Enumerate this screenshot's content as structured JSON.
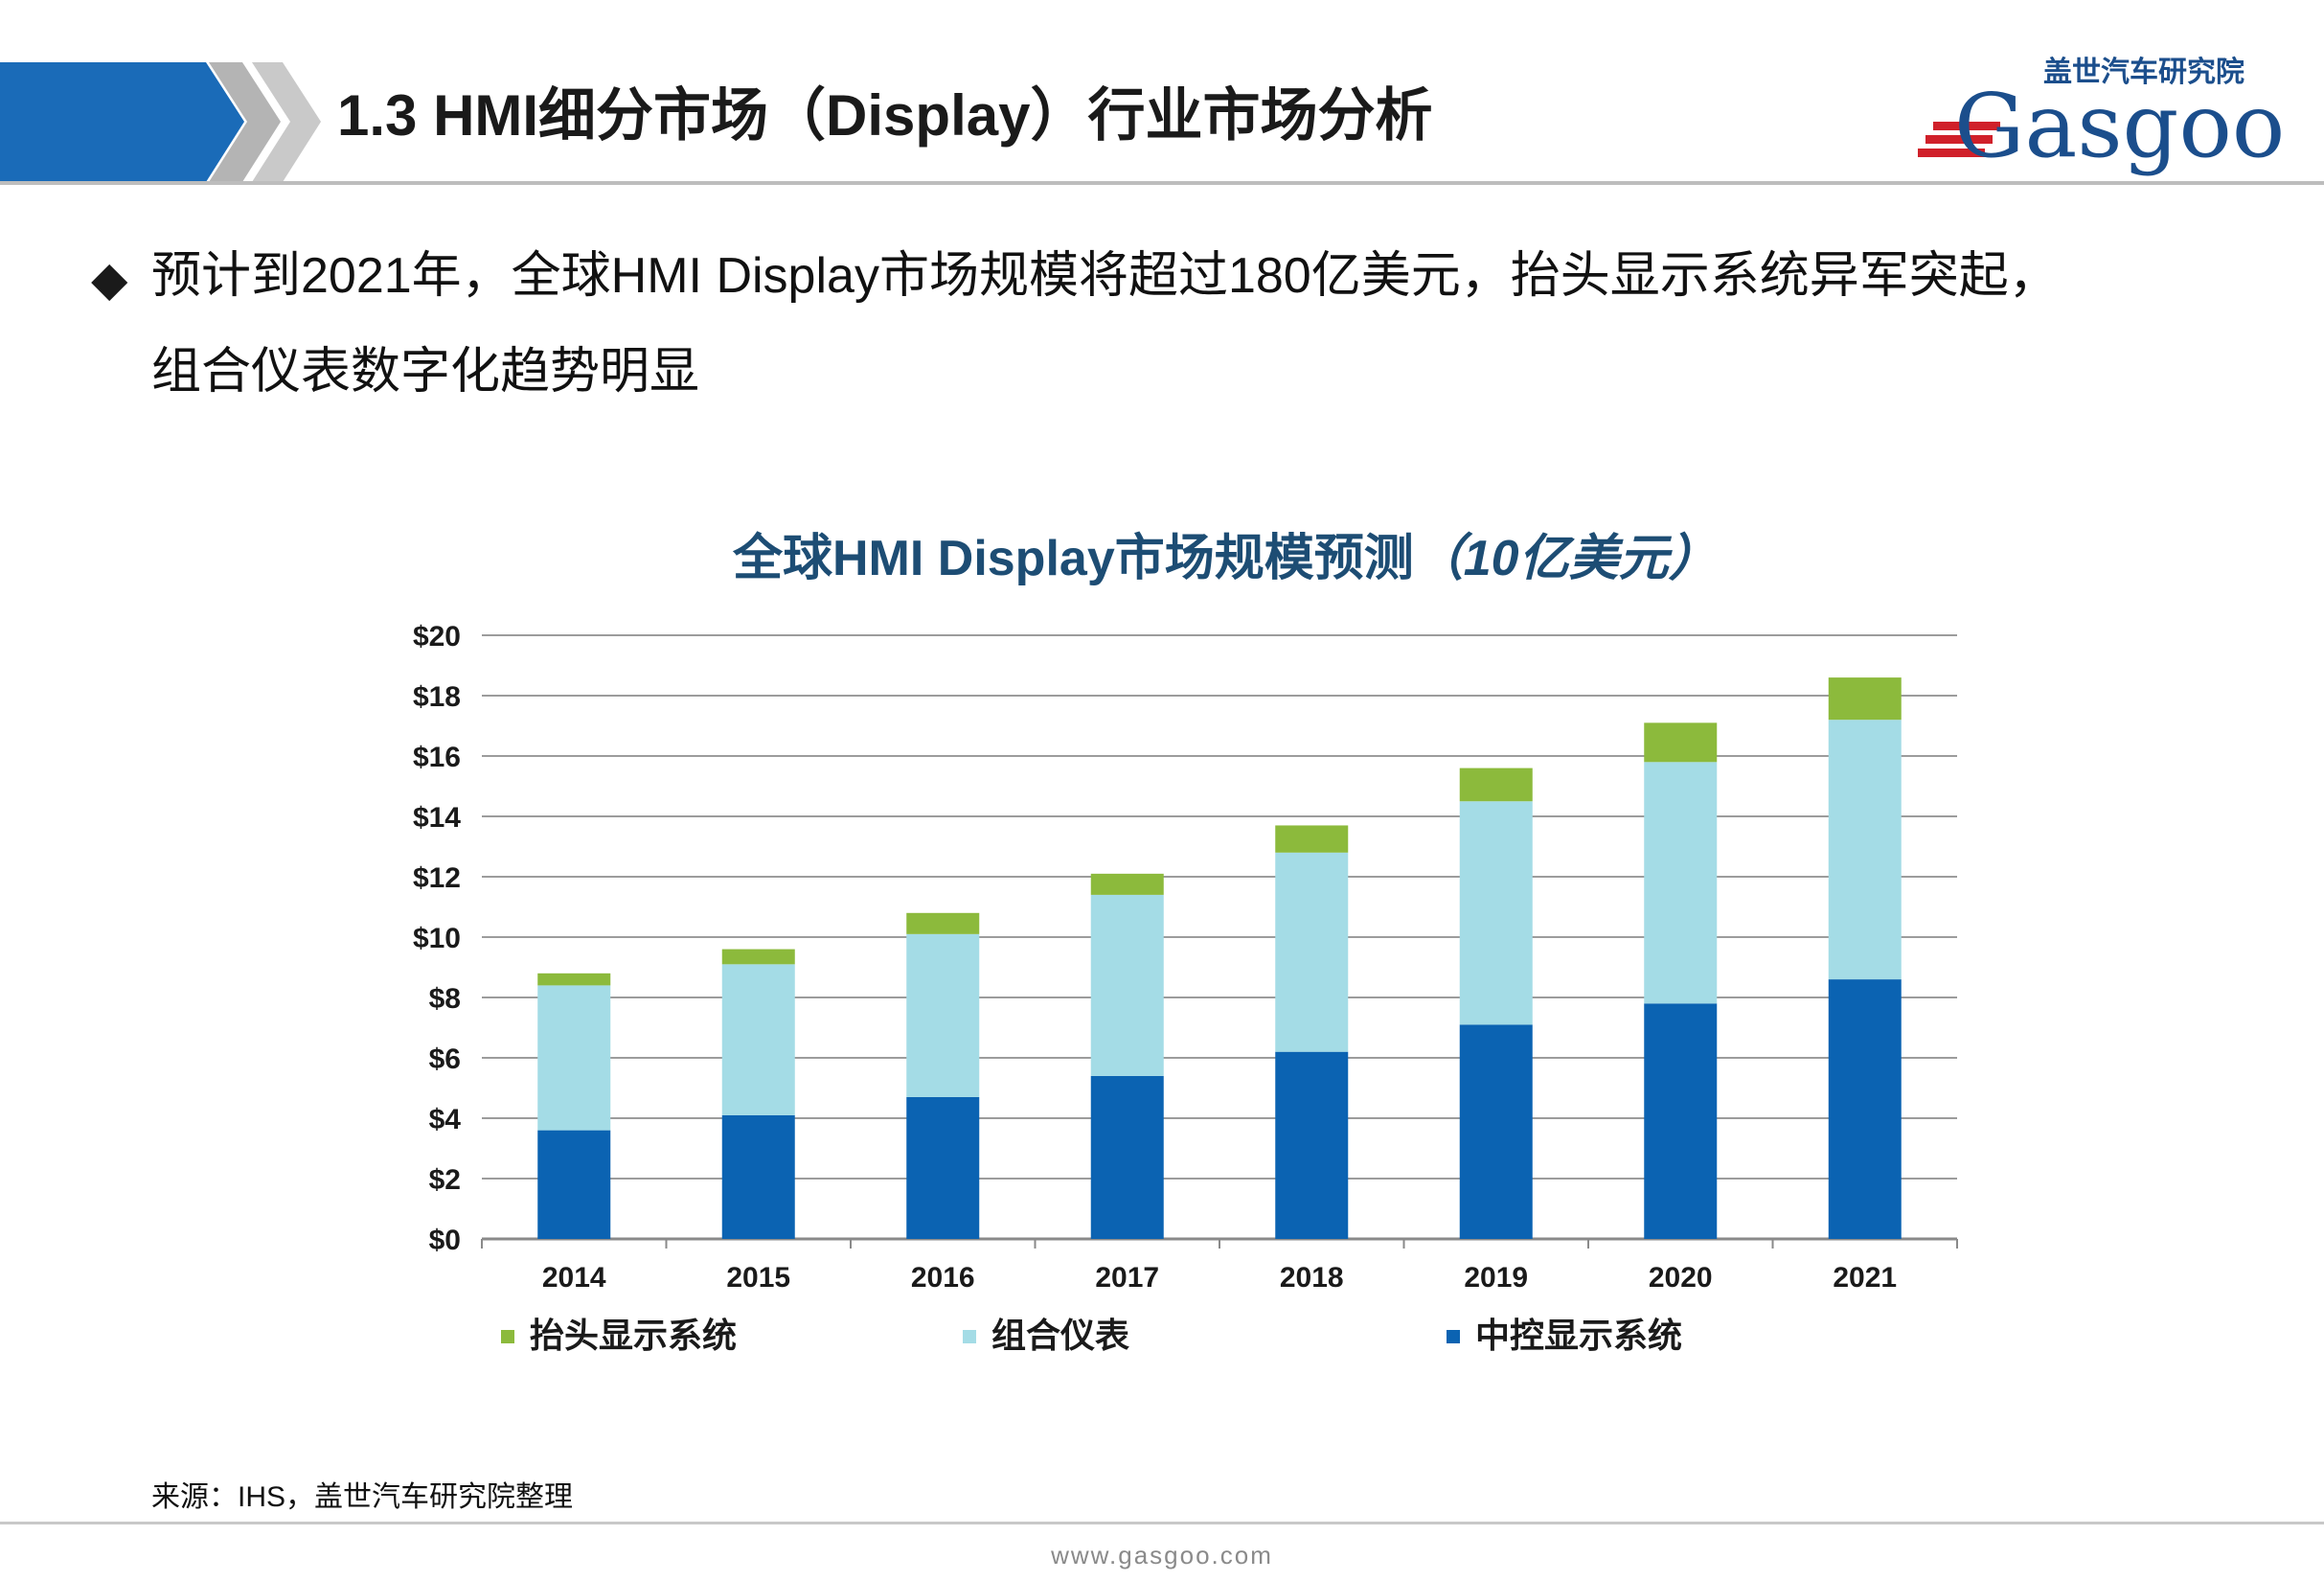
{
  "header": {
    "title": "1.3 HMI细分市场（Display）行业市场分析"
  },
  "logo": {
    "tagline": "盖世汽车研究院",
    "wordmark": "Gasgoo",
    "colors": {
      "blue": "#1b4e8c",
      "red": "#d0202a"
    }
  },
  "bullet": {
    "marker": "◆",
    "line1": "预计到2021年，全球HMI Display市场规模将超过180亿美元，抬头显示系统异军突起，",
    "line2": "组合仪表数字化趋势明显"
  },
  "chart_title": {
    "main": "全球HMI Display市场规模预测",
    "unit": "（10亿美元）"
  },
  "chart_data": {
    "type": "bar",
    "stacked": true,
    "categories": [
      "2014",
      "2015",
      "2016",
      "2017",
      "2018",
      "2019",
      "2020",
      "2021"
    ],
    "series": [
      {
        "name": "中控显示系统",
        "color": "#0b63b2",
        "values": [
          3.6,
          4.1,
          4.7,
          5.4,
          6.2,
          7.1,
          7.8,
          8.6
        ]
      },
      {
        "name": "组合仪表",
        "color": "#a4dce6",
        "values": [
          4.8,
          5.0,
          5.4,
          6.0,
          6.6,
          7.4,
          8.0,
          8.6
        ]
      },
      {
        "name": "抬头显示系统",
        "color": "#8cba3c",
        "values": [
          0.4,
          0.5,
          0.7,
          0.7,
          0.9,
          1.1,
          1.3,
          1.4
        ]
      }
    ],
    "ylim": [
      0,
      20
    ],
    "yticks": [
      "$0",
      "$2",
      "$4",
      "$6",
      "$8",
      "$10",
      "$12",
      "$14",
      "$16",
      "$18",
      "$20"
    ],
    "grid": true,
    "legend": {
      "placement": "bottom",
      "order": [
        "抬头显示系统",
        "组合仪表",
        "中控显示系统"
      ]
    }
  },
  "source": "来源：IHS，盖世汽车研究院整理",
  "footer": {
    "url": "www.gasgoo.com"
  }
}
